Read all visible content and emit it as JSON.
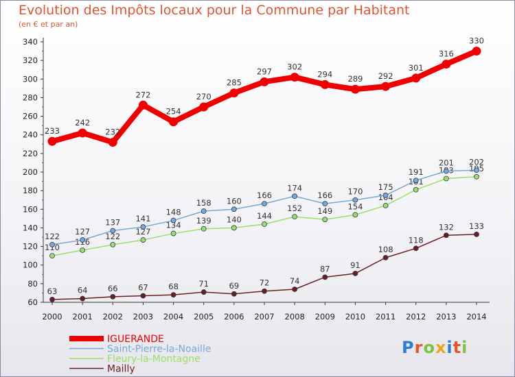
{
  "title": "Evolution des Impôts locaux pour la Commune par Habitant",
  "subtitle": "(en € et par an)",
  "logo": {
    "letters": [
      "P",
      "r",
      "o",
      "x",
      "i",
      "t",
      "i"
    ],
    "colors": [
      "#2a7fd4",
      "#e8532a",
      "#7cc242",
      "#f2a31b",
      "#2a7fd4",
      "#e8532a",
      "#7cc242"
    ]
  },
  "chart_data": {
    "type": "line",
    "x": [
      2000,
      2001,
      2002,
      2003,
      2004,
      2005,
      2006,
      2007,
      2008,
      2009,
      2010,
      2011,
      2012,
      2013,
      2014
    ],
    "ylim": [
      60,
      340
    ],
    "yticks": [
      60,
      80,
      100,
      120,
      140,
      160,
      180,
      200,
      220,
      240,
      260,
      280,
      300,
      320,
      340
    ],
    "grid": false,
    "legend_position": "bottom-left",
    "series": [
      {
        "name": "Mailly",
        "color": "#6b1e1e",
        "values": [
          63,
          64,
          66,
          67,
          68,
          71,
          69,
          72,
          74,
          87,
          91,
          108,
          118,
          132,
          133
        ]
      },
      {
        "name": "Fleury-la-Montagne",
        "color": "#9adf66",
        "values": [
          110,
          116,
          122,
          127,
          134,
          139,
          140,
          144,
          152,
          149,
          154,
          164,
          181,
          193,
          195
        ]
      },
      {
        "name": "Saint-Pierre-la-Noaille",
        "color": "#74a9d8",
        "values": [
          122,
          127,
          137,
          141,
          148,
          158,
          160,
          166,
          174,
          166,
          170,
          175,
          191,
          201,
          202
        ]
      },
      {
        "name": "IGUERANDE",
        "color": "#ee0000",
        "values": [
          233,
          242,
          232,
          272,
          254,
          270,
          285,
          297,
          302,
          294,
          289,
          292,
          301,
          316,
          330
        ]
      }
    ]
  }
}
